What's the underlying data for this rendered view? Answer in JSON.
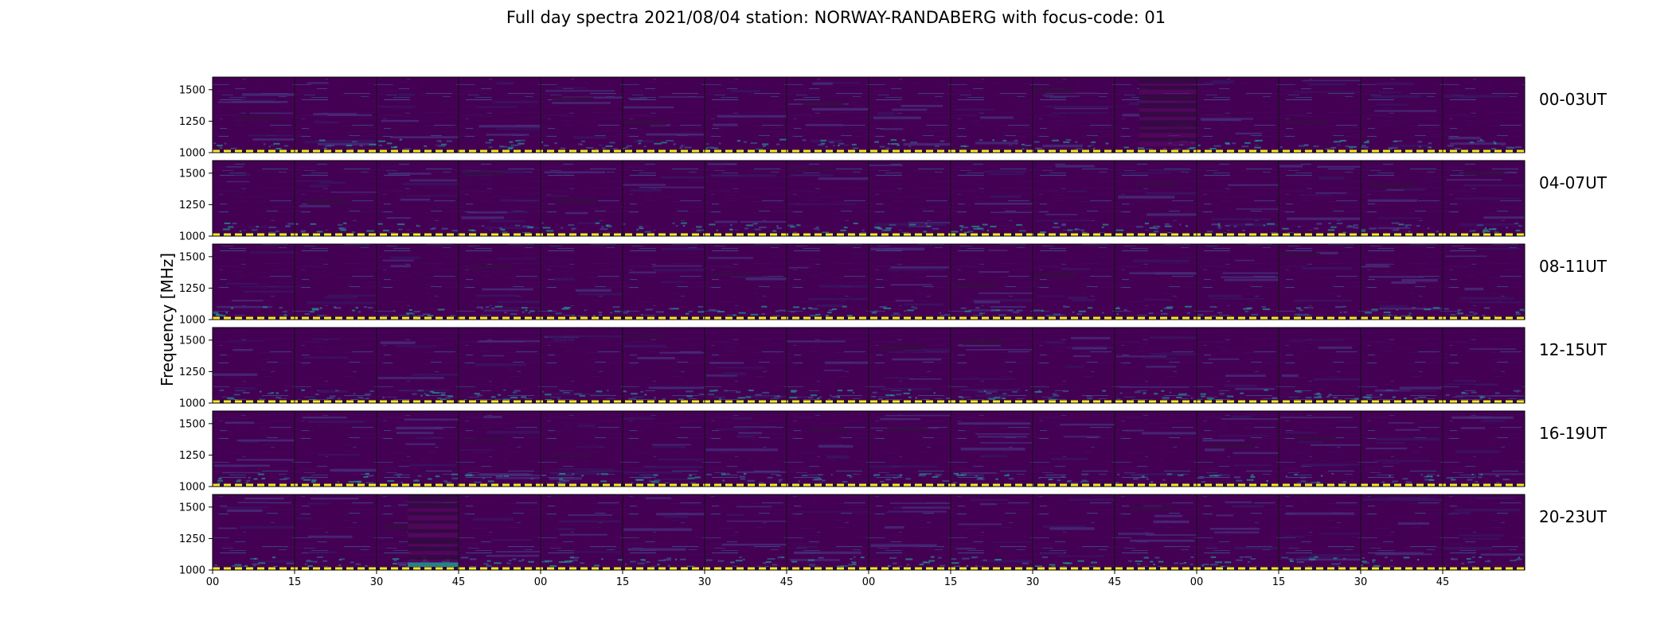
{
  "chart_data": {
    "type": "heatmap",
    "title": "Full day spectra 2021/08/04 station: NORWAY-RANDABERG with focus-code: 01",
    "ylabel": "Frequency [MHz]",
    "xlabel": "",
    "ylim": [
      1000,
      1600
    ],
    "y_ticks": [
      1000,
      1250,
      1500
    ],
    "x_ticks": [
      "00",
      "15",
      "30",
      "45",
      "00",
      "15",
      "30",
      "45",
      "00",
      "15",
      "30",
      "45",
      "00",
      "15",
      "30",
      "45"
    ],
    "rows": [
      "00-03UT",
      "04-07UT",
      "08-11UT",
      "12-15UT",
      "16-19UT",
      "20-23UT"
    ],
    "panels_per_row": 16,
    "panel_minutes": 15,
    "grid": false,
    "colormap": "viridis",
    "colors": {
      "background": "#440154",
      "low": "#46085c",
      "mid": "#3b528b",
      "high": "#21918c",
      "peak": "#fde725"
    },
    "features": [
      {
        "row": 0,
        "panel": 11,
        "kind": "strong-bands",
        "freq": [
          1050,
          1600
        ]
      },
      {
        "row": 5,
        "panel": 2,
        "kind": "strong-bands",
        "freq": [
          1050,
          1600
        ]
      },
      {
        "row": 5,
        "panel": 2,
        "kind": "bright-low-band",
        "freq": [
          1020,
          1060
        ]
      }
    ]
  }
}
